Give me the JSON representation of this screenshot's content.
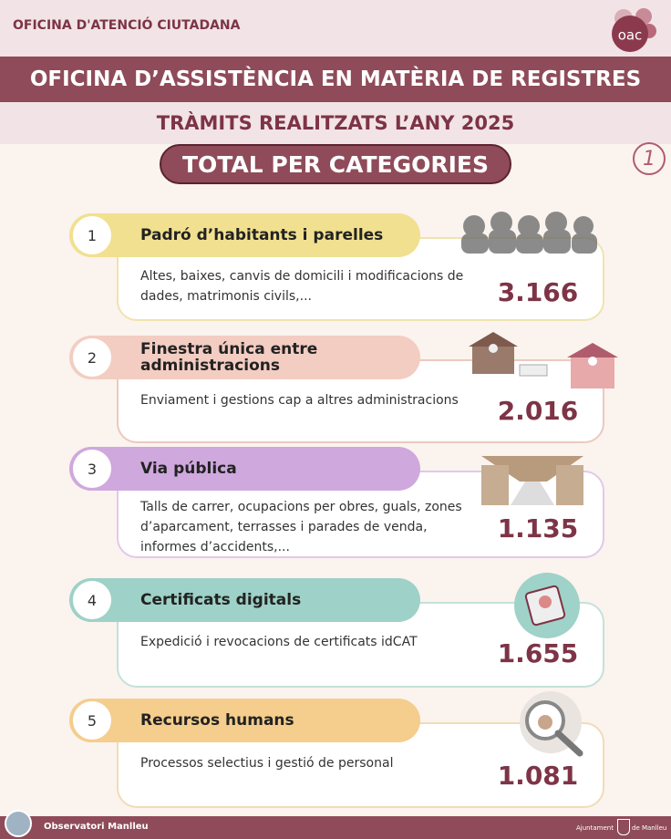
{
  "header": {
    "organization": "OFICINA D'ATENCIÓ CIUTADANA",
    "logo": "oac",
    "title": "OFICINA D’ASSISTÈNCIA EN MATÈRIA DE REGISTRES",
    "subtitle": "TRÀMITS REALITZATS L’ANY 2025",
    "section": "TOTAL PER CATEGORIES",
    "page_number": "1"
  },
  "categories": [
    {
      "number": "1",
      "title": "Padró d’habitants i parelles",
      "description": "Altes, baixes, canvis de domicili i modificacions de dades, matrimonis civils,...",
      "total": "3.166"
    },
    {
      "number": "2",
      "title": "Finestra única entre administracions",
      "description": "Enviament i gestions cap a altres administracions",
      "total": "2.016"
    },
    {
      "number": "3",
      "title": "Via pública",
      "description": "Talls de carrer, ocupacions per obres, guals, zones d’aparcament, terrasses i parades de venda, informes d’accidents,...",
      "total": "1.135"
    },
    {
      "number": "4",
      "title": "Certificats digitals",
      "description": "Expedició i revocacions de certificats idCAT",
      "total": "1.655"
    },
    {
      "number": "5",
      "title": "Recursos humans",
      "description": "Processos selectius i gestió de personal",
      "total": "1.081"
    }
  ],
  "footer": {
    "left": "Observatori Manlleu",
    "right_line1": "Ajuntament",
    "right_line2": "de Manlleu"
  }
}
